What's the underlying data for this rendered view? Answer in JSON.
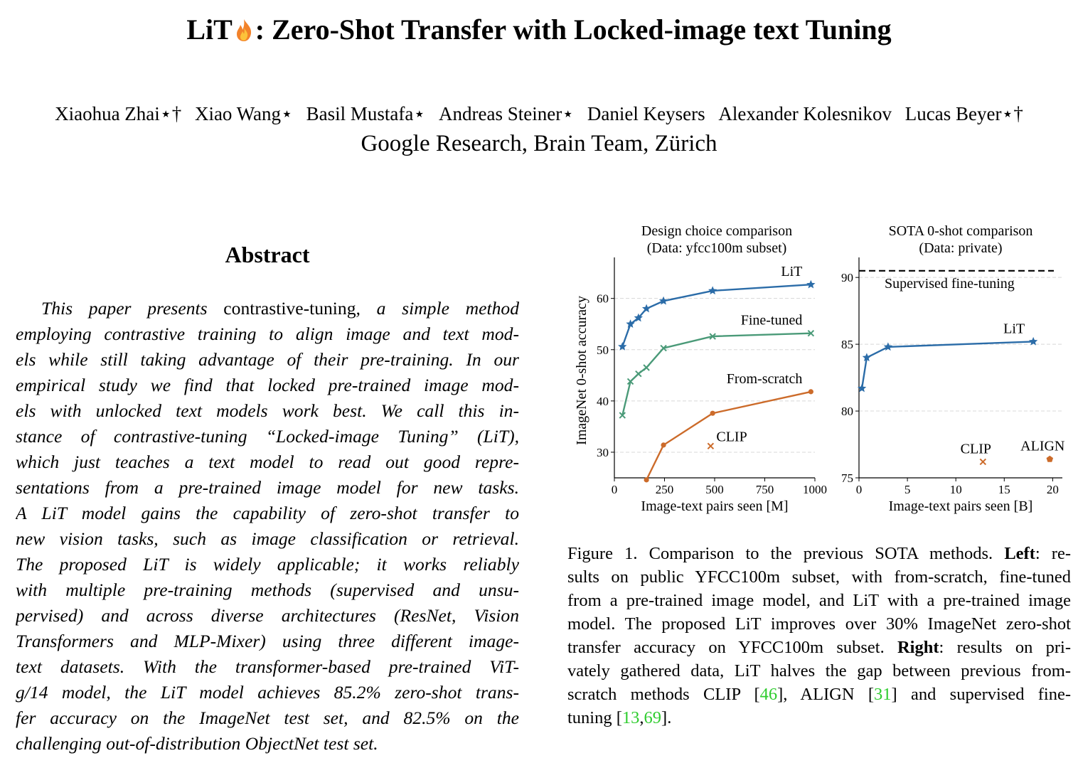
{
  "paper": {
    "title_pre": "LiT",
    "title_post": ": Zero-Shot Transfer with Locked-image text Tuning",
    "authors": [
      "Xiaohua Zhai⋆†",
      "Xiao Wang⋆",
      "Basil Mustafa⋆",
      "Andreas Steiner⋆",
      "Daniel Keysers",
      "Alexander Kolesnikov",
      "Lucas Beyer⋆†"
    ],
    "affiliation": "Google Research, Brain Team, Zürich"
  },
  "abstract": {
    "heading": "Abstract",
    "lines": [
      [
        "This paper presents ",
        "contrastive-tuning",
        ", a simple method"
      ],
      [
        "employing contrastive training to align image and text mod-"
      ],
      [
        "els while still taking advantage of their pre-training. In our"
      ],
      [
        "empirical study we find that locked pre-trained image mod-"
      ],
      [
        "els with unlocked text models work best.  We call this in-"
      ],
      [
        "stance of contrastive-tuning “Locked-image Tuning” (LiT),"
      ],
      [
        "which just teaches a text model to read out good repre-"
      ],
      [
        "sentations from a pre-trained image model for new tasks."
      ],
      [
        "A LiT model gains the capability of zero-shot transfer to"
      ],
      [
        "new vision tasks, such as image classification or retrieval."
      ],
      [
        "The proposed LiT is widely applicable; it works reliably"
      ],
      [
        "with multiple pre-training methods (supervised and unsu-"
      ],
      [
        "pervised) and across diverse architectures (ResNet, Vision"
      ],
      [
        "Transformers and MLP-Mixer) using three different image-"
      ],
      [
        "text datasets.  With the transformer-based pre-trained ViT-"
      ],
      [
        "g/14 model, the LiT model achieves 85.2% zero-shot trans-"
      ],
      [
        "fer accuracy on the ImageNet test set, and 82.5% on the"
      ],
      [
        "challenging out-of-distribution ObjectNet test set."
      ]
    ]
  },
  "caption": {
    "lines": [
      [
        "Figure 1.  Comparison to the previous SOTA methods. ",
        "Left",
        ": re-"
      ],
      [
        "sults on public YFCC100m subset, with from-scratch, fine-tuned"
      ],
      [
        "from a pre-trained image model, and LiT with a pre-trained image"
      ],
      [
        "model. The proposed LiT improves over 30% ImageNet zero-shot"
      ],
      [
        "transfer accuracy on YFCC100m subset.  ",
        "Right",
        ": results on pri-"
      ],
      [
        "vately gathered data, LiT halves the gap between previous from-"
      ],
      [
        "scratch methods CLIP [",
        "46",
        "], ALIGN [",
        "31",
        "] and supervised fine-"
      ],
      [
        "tuning [",
        "13",
        ",",
        "69",
        "]."
      ]
    ]
  },
  "chart_data": [
    {
      "type": "line",
      "title": "Design choice comparison",
      "subtitle": "(Data: yfcc100m subset)",
      "xlabel": "Image-text pairs seen [M]",
      "ylabel": "ImageNet 0-shot accuracy",
      "xlim": [
        0,
        1000
      ],
      "ylim": [
        25,
        68
      ],
      "xticks": [
        0,
        250,
        500,
        750,
        1000
      ],
      "yticks": [
        30,
        40,
        50,
        60
      ],
      "grid": true,
      "series": [
        {
          "name": "LiT",
          "color": "#2b6ca8",
          "marker": "star",
          "x": [
            40,
            80,
            120,
            160,
            245,
            490,
            980
          ],
          "y": [
            50.6,
            55.0,
            56.2,
            58.0,
            59.5,
            61.5,
            62.7
          ]
        },
        {
          "name": "Fine-tuned",
          "color": "#4a9a78",
          "marker": "x",
          "x": [
            40,
            80,
            120,
            160,
            245,
            490,
            980
          ],
          "y": [
            37.2,
            43.8,
            45.3,
            46.5,
            50.3,
            52.6,
            53.2
          ]
        },
        {
          "name": "From-scratch",
          "color": "#cc6b2a",
          "marker": "dot",
          "x": [
            160,
            245,
            490,
            980
          ],
          "y": [
            24.6,
            31.4,
            37.6,
            41.8
          ]
        }
      ],
      "points": [
        {
          "name": "CLIP",
          "x": 480,
          "y": 31.2,
          "color": "#cc6b2a",
          "marker": "x"
        }
      ]
    },
    {
      "type": "line",
      "title": "SOTA 0-shot comparison",
      "subtitle": "(Data: private)",
      "xlabel": "Image-text pairs seen [B]",
      "ylabel": "",
      "xlim": [
        0,
        21
      ],
      "ylim": [
        75,
        91.5
      ],
      "xticks": [
        0,
        5,
        10,
        15,
        20
      ],
      "yticks": [
        75,
        80,
        85,
        90
      ],
      "grid": true,
      "series": [
        {
          "name": "LiT",
          "color": "#2b6ca8",
          "marker": "star",
          "x": [
            0.3,
            0.8,
            3.0,
            18.0
          ],
          "y": [
            81.7,
            84.0,
            84.8,
            85.2
          ]
        }
      ],
      "reference_line": {
        "name": "Supervised fine-tuning",
        "y": 90.5,
        "style": "dashed"
      },
      "points": [
        {
          "name": "CLIP",
          "x": 12.8,
          "y": 76.2,
          "color": "#cc6b2a",
          "marker": "x"
        },
        {
          "name": "ALIGN",
          "x": 19.7,
          "y": 76.4,
          "color": "#cc6b2a",
          "marker": "pentagon"
        }
      ]
    }
  ]
}
